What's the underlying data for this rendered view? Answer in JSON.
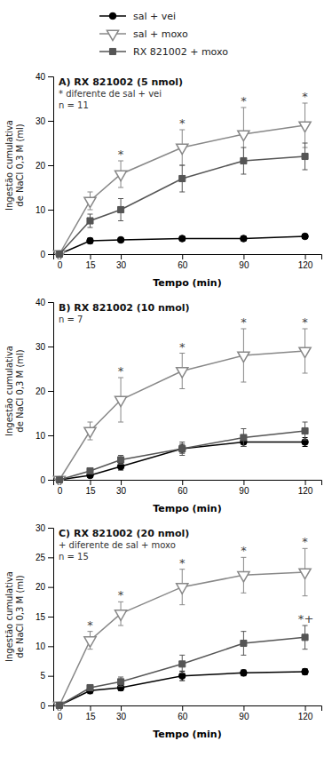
{
  "chart_data": [
    {
      "type": "line",
      "title": "A) RX 821002 (5 nmol)",
      "xlabel": "Tempo (min)",
      "ylabel": "Ingestão cumulativa\nde NaCl 0,3 M (ml)",
      "x": [
        0,
        15,
        30,
        60,
        90,
        120
      ],
      "xlim": [
        -3,
        128
      ],
      "xticks": [
        0,
        15,
        30,
        60,
        90,
        120
      ],
      "ylim": [
        0,
        40
      ],
      "yticks": [
        0,
        10,
        20,
        30,
        40
      ],
      "grid": false,
      "legend": "top",
      "series": [
        {
          "name": "sal + vei",
          "color": "#000000",
          "marker": "circle",
          "values": [
            0,
            3.0,
            3.2,
            3.5,
            3.5,
            4.0
          ],
          "error": [
            0,
            0.6,
            0.5,
            0.5,
            0.5,
            0.5
          ]
        },
        {
          "name": "sal + moxo",
          "color": "#888888",
          "marker": "triangle-down-open",
          "values": [
            0,
            12.0,
            18.0,
            24.0,
            27.0,
            29.0
          ],
          "error": [
            0,
            2.0,
            3.0,
            4.0,
            6.0,
            5.0
          ]
        },
        {
          "name": "RX 821002 + moxo",
          "color": "#555555",
          "marker": "square",
          "values": [
            0,
            7.5,
            10.0,
            17.0,
            21.0,
            22.0
          ],
          "error": [
            0,
            1.5,
            2.5,
            3.0,
            3.0,
            3.0
          ]
        }
      ],
      "annotations": [
        {
          "text": "*  diferente de sal + vei"
        },
        {
          "text": "n = 11"
        },
        {
          "text": "*",
          "x": 30,
          "series": "sal + moxo"
        },
        {
          "text": "*",
          "x": 60,
          "series": "sal + moxo"
        },
        {
          "text": "*",
          "x": 90,
          "series": "sal + moxo"
        },
        {
          "text": "*",
          "x": 120,
          "series": "sal + moxo"
        }
      ]
    },
    {
      "type": "line",
      "title": "B) RX 821002 (10 nmol)",
      "xlabel": "Tempo (min)",
      "ylabel": "Ingestão cumulativa\nde NaCl 0,3 M (ml)",
      "x": [
        0,
        15,
        30,
        60,
        90,
        120
      ],
      "xlim": [
        -3,
        128
      ],
      "xticks": [
        0,
        15,
        30,
        60,
        90,
        120
      ],
      "ylim": [
        0,
        40
      ],
      "yticks": [
        0,
        10,
        20,
        30,
        40
      ],
      "grid": false,
      "series": [
        {
          "name": "sal + vei",
          "color": "#000000",
          "marker": "circle",
          "values": [
            0,
            1.0,
            3.0,
            7.0,
            8.5,
            8.5
          ],
          "error": [
            0,
            0.3,
            0.8,
            1.0,
            1.0,
            1.0
          ]
        },
        {
          "name": "sal + moxo",
          "color": "#888888",
          "marker": "triangle-down-open",
          "values": [
            0,
            11.0,
            18.0,
            24.5,
            28.0,
            29.0
          ],
          "error": [
            0,
            2.0,
            5.0,
            4.0,
            6.0,
            5.0
          ]
        },
        {
          "name": "RX 821002 + moxo",
          "color": "#555555",
          "marker": "square",
          "values": [
            0,
            2.0,
            4.5,
            7.0,
            9.5,
            11.0
          ],
          "error": [
            0,
            0.5,
            1.0,
            1.5,
            2.0,
            2.0
          ]
        }
      ],
      "annotations": [
        {
          "text": "n = 7"
        },
        {
          "text": "*",
          "x": 30,
          "series": "sal + moxo"
        },
        {
          "text": "*",
          "x": 60,
          "series": "sal + moxo"
        },
        {
          "text": "*",
          "x": 90,
          "series": "sal + moxo"
        },
        {
          "text": "*",
          "x": 120,
          "series": "sal + moxo"
        }
      ]
    },
    {
      "type": "line",
      "title": "C) RX 821002 (20 nmol)",
      "xlabel": "Tempo (min)",
      "ylabel": "Ingestão cumulativa\nde NaCl 0,3 M (ml)",
      "x": [
        0,
        15,
        30,
        60,
        90,
        120
      ],
      "xlim": [
        -3,
        128
      ],
      "xticks": [
        0,
        15,
        30,
        60,
        90,
        120
      ],
      "ylim": [
        0,
        30
      ],
      "yticks": [
        0,
        5,
        10,
        15,
        20,
        25,
        30
      ],
      "grid": false,
      "series": [
        {
          "name": "sal + vei",
          "color": "#000000",
          "marker": "circle",
          "values": [
            0,
            2.5,
            3.0,
            5.0,
            5.5,
            5.7
          ],
          "error": [
            0,
            0.5,
            0.5,
            0.8,
            0.5,
            0.5
          ]
        },
        {
          "name": "sal + moxo",
          "color": "#888888",
          "marker": "triangle-down-open",
          "values": [
            0,
            11.0,
            15.5,
            20.0,
            22.0,
            22.5
          ],
          "error": [
            0,
            1.5,
            2.0,
            3.0,
            3.0,
            4.0
          ]
        },
        {
          "name": "RX 821002 + moxo",
          "color": "#555555",
          "marker": "square",
          "values": [
            0,
            3.0,
            4.0,
            7.0,
            10.5,
            11.5
          ],
          "error": [
            0,
            0.5,
            0.8,
            1.5,
            2.0,
            2.0
          ]
        }
      ],
      "annotations": [
        {
          "text": "+  diferente de sal + moxo"
        },
        {
          "text": "n = 15"
        },
        {
          "text": "*",
          "x": 15,
          "series": "sal + moxo"
        },
        {
          "text": "*",
          "x": 30,
          "series": "sal + moxo"
        },
        {
          "text": "*",
          "x": 60,
          "series": "sal + moxo"
        },
        {
          "text": "*",
          "x": 90,
          "series": "sal + moxo"
        },
        {
          "text": "*",
          "x": 120,
          "series": "sal + moxo"
        },
        {
          "text": "*",
          "x": 120,
          "series": "RX 821002 + moxo"
        },
        {
          "text": "+",
          "x": 120,
          "series": "RX 821002 + moxo"
        }
      ]
    }
  ]
}
